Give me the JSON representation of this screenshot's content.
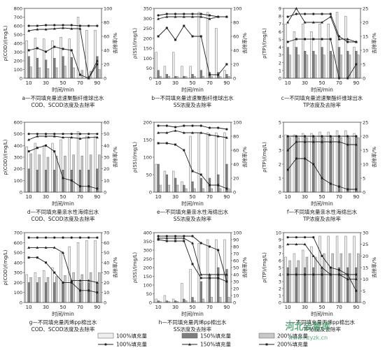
{
  "panel_colors": {
    "bar_100": "#eeeeee",
    "bar_150": "#7f7f7f",
    "bar_200": "#c8c8c8",
    "line": "#222222",
    "axis": "#444444"
  },
  "legend": {
    "bars": [
      "100%填充量",
      "150%填充量",
      "200%填充量"
    ],
    "lines": [
      "100%填充量",
      "150%填充量",
      "200%填充量"
    ]
  },
  "watermark": {
    "title": "河北云智库",
    "url": "www.hzyzk.cn"
  },
  "chart_data": [
    {
      "type": "bar",
      "id": "a",
      "xlabel": "时间/min",
      "ylabel_left": "ρ(COD)/(mg/L)",
      "ylabel_right": "去除率/%",
      "yleft_ticks": [
        "0",
        "100",
        "200",
        "300",
        "400",
        "500",
        "600",
        "700",
        "800"
      ],
      "yright_ticks": [
        "0",
        "20",
        "40",
        "60",
        "80",
        "100"
      ],
      "ylim_left": [
        0,
        800
      ],
      "ylim_right": [
        0,
        100
      ],
      "categories": [
        "10",
        "20",
        "30",
        "40",
        "50",
        "60",
        "70",
        "80",
        "90"
      ],
      "bars": [
        {
          "name": "100%填充量",
          "values": [
            430,
            460,
            450,
            430,
            470,
            450,
            700,
            550,
            550
          ]
        },
        {
          "name": "150%填充量",
          "values": [
            250,
            230,
            210,
            230,
            250,
            240,
            0,
            20,
            250
          ]
        },
        {
          "name": "200%填充量",
          "values": [
            130,
            120,
            110,
            120,
            140,
            120,
            90,
            80,
            100
          ]
        }
      ],
      "lines": [
        {
          "name": "100%填充量",
          "values": [
            75,
            75,
            76,
            76,
            76,
            76,
            75,
            75,
            75
          ]
        },
        {
          "name": "150%填充量",
          "values": [
            68,
            70,
            70,
            71,
            72,
            71,
            71,
            0,
            25
          ]
        },
        {
          "name": "200%填充量",
          "values": [
            40,
            43,
            38,
            45,
            42,
            40,
            5,
            0,
            20
          ]
        }
      ],
      "caption_line1": "a—不同填充量滤速聚酯纤维球出水",
      "caption_line2": "COD、SCOD浓度及去除率"
    },
    {
      "type": "bar",
      "id": "b",
      "xlabel": "时间/min",
      "ylabel_left": "ρ(SS)/(mg/L)",
      "ylabel_right": "去除率/%",
      "yleft_ticks": [
        "0",
        "50",
        "100",
        "150",
        "200",
        "250",
        "300",
        "350"
      ],
      "yright_ticks": [
        "0",
        "20",
        "40",
        "60",
        "80",
        "100"
      ],
      "ylim_left": [
        0,
        350
      ],
      "ylim_right": [
        0,
        100
      ],
      "categories": [
        "10",
        "20",
        "30",
        "40",
        "50",
        "60",
        "70",
        "80",
        "90"
      ],
      "bars": [
        {
          "name": "100%填充量",
          "values": [
            130,
            60,
            130,
            60,
            60,
            330,
            330,
            250,
            40
          ]
        },
        {
          "name": "150%填充量",
          "values": [
            40,
            20,
            10,
            10,
            20,
            40,
            30,
            30,
            20
          ]
        },
        {
          "name": "200%填充量",
          "values": [
            10,
            10,
            8,
            8,
            10,
            10,
            8,
            8,
            10
          ]
        }
      ],
      "lines": [
        {
          "name": "100%填充量",
          "values": [
            90,
            92,
            92,
            92,
            92,
            92,
            90,
            88,
            88
          ]
        },
        {
          "name": "150%填充量",
          "values": [
            85,
            88,
            88,
            88,
            88,
            88,
            85,
            88,
            88
          ]
        },
        {
          "name": "200%填充量",
          "values": [
            60,
            72,
            55,
            75,
            60,
            60,
            5,
            5,
            20
          ]
        }
      ],
      "caption_line1": "b—不同填充量滤速聚酯纤维球出水",
      "caption_line2": "SS浓度及去除率"
    },
    {
      "type": "bar",
      "id": "c",
      "xlabel": "时间/min",
      "ylabel_left": "ρ(TP)/(mg/L)",
      "ylabel_right": "去除率/%",
      "yleft_ticks": [
        "0",
        "1",
        "2",
        "3",
        "4",
        "5",
        "6",
        "7",
        "8",
        "9"
      ],
      "yright_ticks": [
        "0",
        "5",
        "10",
        "15",
        "20",
        "25"
      ],
      "ylim_left": [
        0,
        9
      ],
      "ylim_right": [
        0,
        25
      ],
      "categories": [
        "10",
        "20",
        "30",
        "40",
        "50",
        "60",
        "70",
        "80",
        "90"
      ],
      "bars": [
        {
          "name": "100%填充量",
          "values": [
            7,
            6,
            7,
            6,
            7,
            7,
            8.5,
            8,
            4
          ]
        },
        {
          "name": "150%填充量",
          "values": [
            4,
            4,
            3.5,
            3.5,
            4,
            3.5,
            4,
            3.5,
            3.5
          ]
        },
        {
          "name": "200%填充量",
          "values": [
            3,
            3,
            3,
            3,
            3,
            3,
            3,
            3,
            3
          ]
        }
      ],
      "lines": [
        {
          "name": "100%填充量",
          "values": [
            22,
            23,
            23,
            23,
            23,
            23,
            15,
            13,
            13
          ]
        },
        {
          "name": "150%填充量",
          "values": [
            20,
            25,
            20,
            20,
            20,
            22,
            14,
            14,
            13
          ]
        },
        {
          "name": "200%填充量",
          "values": [
            13,
            14,
            14,
            14,
            14,
            14,
            0,
            0,
            5
          ]
        }
      ],
      "caption_line1": "c—不同填充量滤速聚酯纤维球出水",
      "caption_line2": "TP浓度及去除率"
    },
    {
      "type": "bar",
      "id": "d",
      "xlabel": "时间/min",
      "ylabel_left": "ρ(COD)/(mg/L)",
      "ylabel_right": "去除率/%",
      "yleft_ticks": [
        "0",
        "100",
        "200",
        "300",
        "400",
        "500",
        "600"
      ],
      "yright_ticks": [
        "0",
        "10",
        "20",
        "30",
        "40",
        "50",
        "60"
      ],
      "ylim_left": [
        0,
        600
      ],
      "ylim_right": [
        0,
        60
      ],
      "categories": [
        "10",
        "20",
        "30",
        "40",
        "50",
        "60",
        "70",
        "80",
        "90"
      ],
      "bars": [
        {
          "name": "100%填充量",
          "values": [
            390,
            420,
            400,
            420,
            450,
            470,
            520,
            480,
            480
          ]
        },
        {
          "name": "150%填充量",
          "values": [
            200,
            190,
            190,
            190,
            190,
            190,
            190,
            190,
            200
          ]
        },
        {
          "name": "200%填充量",
          "values": [
            330,
            320,
            300,
            310,
            310,
            320,
            310,
            320,
            320
          ]
        }
      ],
      "lines": [
        {
          "name": "100%填充量",
          "values": [
            50,
            50,
            50,
            50,
            50,
            50,
            50,
            50,
            50
          ]
        },
        {
          "name": "150%填充量",
          "values": [
            45,
            48,
            48,
            48,
            47,
            47,
            46,
            47,
            47
          ]
        },
        {
          "name": "200%填充量",
          "values": [
            35,
            38,
            40,
            35,
            12,
            10,
            5,
            5,
            3
          ]
        }
      ],
      "caption_line1": "d—不同填充量亲水性海绵出水",
      "caption_line2": "COD、SCOD浓度及去除率"
    },
    {
      "type": "bar",
      "id": "e",
      "xlabel": "时间/min",
      "ylabel_left": "ρ(SS)/(mg/L)",
      "ylabel_right": "去除率/%",
      "yleft_ticks": [
        "0",
        "50",
        "100",
        "150",
        "200"
      ],
      "yright_ticks": [
        "0",
        "20",
        "40",
        "60",
        "80",
        "100"
      ],
      "ylim_left": [
        0,
        200
      ],
      "ylim_right": [
        0,
        100
      ],
      "categories": [
        "10",
        "20",
        "30",
        "40",
        "50",
        "60",
        "70",
        "80",
        "90"
      ],
      "bars": [
        {
          "name": "100%填充量",
          "values": [
            80,
            60,
            60,
            30,
            160,
            170,
            170,
            170,
            170
          ]
        },
        {
          "name": "150%填充量",
          "values": [
            80,
            50,
            40,
            20,
            30,
            40,
            40,
            50,
            80
          ]
        },
        {
          "name": "200%填充量",
          "values": [
            20,
            20,
            20,
            10,
            10,
            10,
            10,
            10,
            10
          ]
        }
      ],
      "lines": [
        {
          "name": "100%填充量",
          "values": [
            95,
            95,
            93,
            95,
            95,
            95,
            92,
            92,
            90
          ]
        },
        {
          "name": "150%填充量",
          "values": [
            85,
            85,
            88,
            85,
            85,
            85,
            82,
            80,
            78
          ]
        },
        {
          "name": "200%填充量",
          "values": [
            70,
            70,
            68,
            60,
            30,
            25,
            10,
            10,
            5
          ]
        }
      ],
      "caption_line1": "e—不同填充量亲水性海绵出水",
      "caption_line2": "SS浓度及去除率"
    },
    {
      "type": "bar",
      "id": "f",
      "xlabel": "时间/min",
      "ylabel_left": "ρ(TP)/(mg/L)",
      "ylabel_right": "去除率/%",
      "yleft_ticks": [
        "0",
        "1",
        "2",
        "3",
        "4",
        "5"
      ],
      "yright_ticks": [
        "0",
        "5",
        "10",
        "15",
        "20",
        "25"
      ],
      "ylim_left": [
        0,
        5
      ],
      "ylim_right": [
        0,
        25
      ],
      "categories": [
        "10",
        "20",
        "30",
        "40",
        "50",
        "60",
        "70",
        "80",
        "90"
      ],
      "bars": [
        {
          "name": "100%填充量",
          "values": [
            4.1,
            4.1,
            4.2,
            4.2,
            4.3,
            4.3,
            4.4,
            4.4,
            4.2
          ]
        },
        {
          "name": "150%填充量",
          "values": [
            4,
            4,
            4,
            4,
            4,
            4,
            4,
            4,
            4
          ]
        },
        {
          "name": "200%填充量",
          "values": [
            3.9,
            3.9,
            3.9,
            3.9,
            3.9,
            3.9,
            3.9,
            3.9,
            3.9
          ]
        }
      ],
      "lines": [
        {
          "name": "100%填充量",
          "values": [
            20,
            20,
            20,
            20,
            20,
            20,
            20,
            20,
            20
          ]
        },
        {
          "name": "150%填充量",
          "values": [
            15,
            18,
            18,
            18,
            18,
            18,
            18,
            17,
            17
          ]
        },
        {
          "name": "200%填充量",
          "values": [
            8,
            12,
            12,
            10,
            5,
            3,
            2,
            1,
            1
          ]
        }
      ],
      "caption_line1": "f—不同填充量亲水性海绵出水",
      "caption_line2": "TP浓度及去除率"
    },
    {
      "type": "bar",
      "id": "g",
      "xlabel": "时间/min",
      "ylabel_left": "ρ(COD)/(mg/L)",
      "ylabel_right": "去除率/%",
      "yleft_ticks": [
        "0",
        "100",
        "200",
        "300",
        "400",
        "500",
        "600",
        "700"
      ],
      "yright_ticks": [
        "0",
        "10",
        "20",
        "30",
        "40",
        "50",
        "60",
        "70"
      ],
      "ylim_left": [
        0,
        700
      ],
      "ylim_right": [
        0,
        70
      ],
      "categories": [
        "10",
        "20",
        "30",
        "40",
        "50",
        "60",
        "70",
        "80",
        "90"
      ],
      "bars": [
        {
          "name": "100%填充量",
          "values": [
            280,
            300,
            320,
            350,
            500,
            560,
            600,
            620,
            620
          ]
        },
        {
          "name": "150%填充量",
          "values": [
            200,
            200,
            200,
            200,
            200,
            200,
            200,
            200,
            200
          ]
        },
        {
          "name": "200%填充量",
          "values": [
            250,
            250,
            250,
            260,
            270,
            300,
            280,
            300,
            300
          ]
        }
      ],
      "lines": [
        {
          "name": "100%填充量",
          "values": [
            65,
            65,
            65,
            65,
            65,
            65,
            65,
            65,
            65
          ]
        },
        {
          "name": "150%填充量",
          "values": [
            55,
            55,
            55,
            55,
            50,
            22,
            22,
            22,
            20
          ]
        },
        {
          "name": "200%填充量",
          "values": [
            45,
            45,
            40,
            30,
            20,
            20,
            12,
            12,
            10
          ]
        }
      ],
      "caption_line1": "g—不同填充量丙烯pp棉出水",
      "caption_line2": "COD、SCOD浓度及去除率"
    },
    {
      "type": "bar",
      "id": "h",
      "xlabel": "时间/min",
      "ylabel_left": "ρ(SS)/(mg/L)",
      "ylabel_right": "去除率/%",
      "yleft_ticks": [
        "0",
        "50",
        "100",
        "150",
        "200",
        "250",
        "300",
        "350",
        "400"
      ],
      "yright_ticks": [
        "0",
        "10",
        "20",
        "30",
        "40",
        "50",
        "60",
        "70",
        "80",
        "90",
        "100"
      ],
      "ylim_left": [
        0,
        400
      ],
      "ylim_right": [
        0,
        100
      ],
      "categories": [
        "10",
        "20",
        "30",
        "40",
        "50",
        "60",
        "70",
        "80",
        "90"
      ],
      "bars": [
        {
          "name": "100%填充量",
          "values": [
            20,
            40,
            20,
            110,
            190,
            340,
            360,
            360,
            360
          ]
        },
        {
          "name": "150%填充量",
          "values": [
            10,
            10,
            10,
            20,
            30,
            120,
            160,
            200,
            190
          ]
        },
        {
          "name": "200%填充量",
          "values": [
            5,
            5,
            5,
            10,
            10,
            20,
            30,
            30,
            30
          ]
        }
      ],
      "lines": [
        {
          "name": "100%填充量",
          "values": [
            95,
            95,
            95,
            95,
            95,
            85,
            80,
            75,
            30
          ]
        },
        {
          "name": "150%填充量",
          "values": [
            92,
            92,
            92,
            92,
            85,
            40,
            40,
            40,
            40
          ]
        },
        {
          "name": "200%填充量",
          "values": [
            90,
            88,
            88,
            88,
            55,
            35,
            35,
            35,
            30
          ]
        }
      ],
      "caption_line1": "h—不同填充量丙烯pp棉出水",
      "caption_line2": "SS浓度及去除率"
    },
    {
      "type": "bar",
      "id": "i",
      "xlabel": "时间/min",
      "ylabel_left": "ρ(TP)/(mg/L)",
      "ylabel_right": "去除率/%",
      "yleft_ticks": [
        "0",
        "1",
        "2",
        "3",
        "4",
        "5",
        "6",
        "7",
        "8",
        "9",
        "10"
      ],
      "yright_ticks": [
        "0",
        "5",
        "10",
        "15",
        "20",
        "25",
        "30"
      ],
      "ylim_left": [
        0,
        10
      ],
      "ylim_right": [
        0,
        30
      ],
      "categories": [
        "10",
        "20",
        "30",
        "40",
        "50",
        "60",
        "70",
        "80",
        "90"
      ],
      "bars": [
        {
          "name": "100%填充量",
          "values": [
            6.5,
            7,
            7.5,
            8,
            9.5,
            9.5,
            9.5,
            9.5,
            9.5
          ]
        },
        {
          "name": "150%填充量",
          "values": [
            5,
            5,
            5,
            5,
            5,
            5,
            5,
            5,
            5
          ]
        },
        {
          "name": "200%填充量",
          "values": [
            6,
            6,
            6.5,
            6.5,
            7,
            7,
            7,
            7,
            7
          ]
        }
      ],
      "lines": [
        {
          "name": "100%填充量",
          "values": [
            28,
            28,
            28,
            28,
            20,
            15,
            14,
            12,
            12
          ]
        },
        {
          "name": "150%填充量",
          "values": [
            25,
            25,
            25,
            20,
            15,
            12,
            12,
            10,
            10
          ]
        },
        {
          "name": "200%填充量",
          "values": [
            12,
            12,
            12,
            12,
            12,
            12,
            12,
            12,
            5
          ]
        }
      ],
      "caption_line1": "i—不同填充量丙烯pp棉出水",
      "caption_line2": "TP浓度及去除率"
    }
  ]
}
